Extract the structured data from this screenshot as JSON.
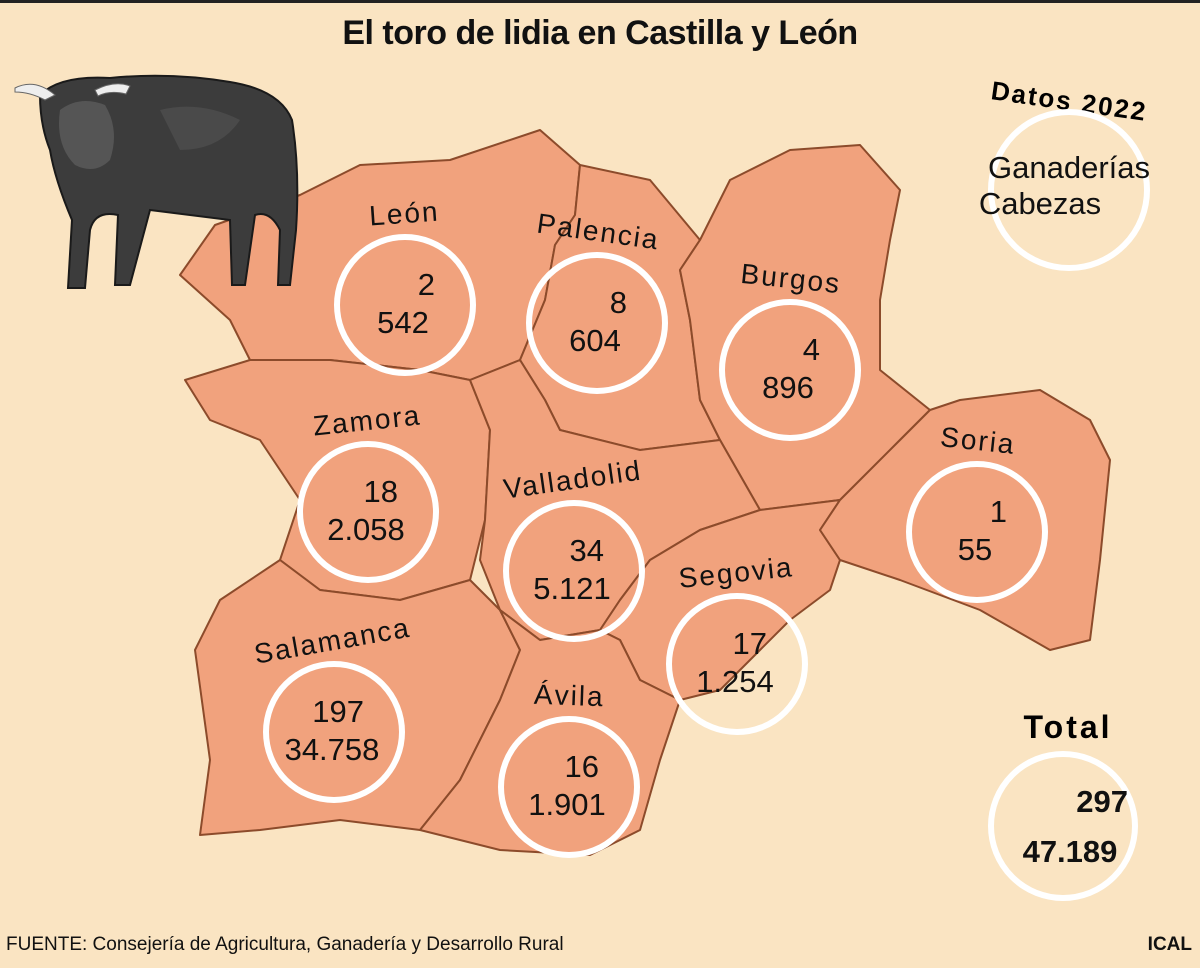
{
  "title": "El toro de lidia en Castilla y León",
  "legend": {
    "heading": "Datos 2022",
    "line1": "Ganaderías",
    "line2": "Cabezas"
  },
  "total": {
    "label": "Total",
    "ganaderias": "297",
    "cabezas": "47.189"
  },
  "provinces": [
    {
      "name": "León",
      "ganaderias": "2",
      "cabezas": "542"
    },
    {
      "name": "Palencia",
      "ganaderias": "8",
      "cabezas": "604"
    },
    {
      "name": "Burgos",
      "ganaderias": "4",
      "cabezas": "896"
    },
    {
      "name": "Zamora",
      "ganaderias": "18",
      "cabezas": "2.058"
    },
    {
      "name": "Valladolid",
      "ganaderias": "34",
      "cabezas": "5.121"
    },
    {
      "name": "Segovia",
      "ganaderias": "17",
      "cabezas": "1.254"
    },
    {
      "name": "Soria",
      "ganaderias": "1",
      "cabezas": "55"
    },
    {
      "name": "Salamanca",
      "ganaderias": "197",
      "cabezas": "34.758"
    },
    {
      "name": "Ávila",
      "ganaderias": "16",
      "cabezas": "1.901"
    }
  ],
  "source": "FUENTE: Consejería de Agricultura, Ganadería y Desarrollo Rural",
  "credit": "ICAL",
  "colors": {
    "background": "#fae4c2",
    "province_fill": "#f1a27d",
    "border": "#8c4b2b",
    "ring": "#ffffff"
  }
}
